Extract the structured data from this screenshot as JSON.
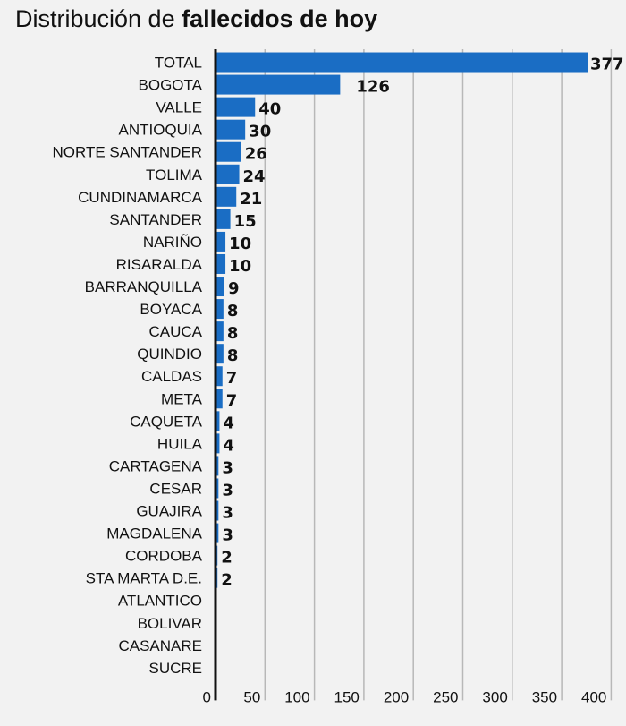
{
  "chart_data": {
    "type": "bar",
    "orientation": "horizontal",
    "title_prefix": "Distribución de ",
    "title_bold": "fallecidos de hoy",
    "categories": [
      "TOTAL",
      "BOGOTA",
      "VALLE",
      "ANTIOQUIA",
      "NORTE SANTANDER",
      "TOLIMA",
      "CUNDINAMARCA",
      "SANTANDER",
      "NARIÑO",
      "RISARALDA",
      "BARRANQUILLA",
      "BOYACA",
      "CAUCA",
      "QUINDIO",
      "CALDAS",
      "META",
      "CAQUETA",
      "HUILA",
      "CARTAGENA",
      "CESAR",
      "GUAJIRA",
      "MAGDALENA",
      "CORDOBA",
      "STA MARTA D.E.",
      "ATLANTICO",
      "BOLIVAR",
      "CASANARE",
      "SUCRE"
    ],
    "values": [
      377,
      126,
      40,
      30,
      26,
      24,
      21,
      15,
      10,
      10,
      9,
      8,
      8,
      8,
      7,
      7,
      4,
      4,
      3,
      3,
      3,
      3,
      2,
      2,
      1,
      1,
      1,
      1
    ],
    "data_labels": [
      "377",
      "126",
      "40",
      "30",
      "26",
      "24",
      "21",
      "15",
      "10",
      "10",
      "9",
      "8",
      "8",
      "8",
      "7",
      "7",
      "4",
      "4",
      "3",
      "3",
      "3",
      "3",
      "2",
      "2",
      "",
      "",
      "",
      ""
    ],
    "xlim": [
      0,
      410
    ],
    "xticks": [
      "0",
      "50",
      "100",
      "150",
      "200",
      "250",
      "300",
      "350",
      "400"
    ],
    "grid": "vertical",
    "bar_color": "#1a6dc4"
  }
}
